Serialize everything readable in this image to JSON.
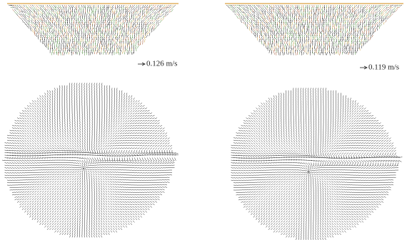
{
  "panels": [
    {
      "scale_label": "0.126 m/s"
    },
    {
      "scale_label": "0.119 m/s"
    }
  ]
}
